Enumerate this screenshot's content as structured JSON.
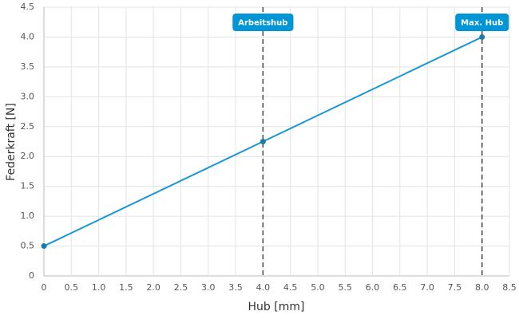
{
  "chart_data": {
    "type": "line",
    "xlabel": "Hub [mm]",
    "ylabel": "Federkraft [N]",
    "x": [
      0,
      4,
      8
    ],
    "values": [
      0.5,
      2.25,
      4.0
    ],
    "color": "#1a96d4",
    "marker_color": "#1a7ba3",
    "xlim": [
      0,
      8.5
    ],
    "xticks": [
      0,
      0.5,
      {
        "value": 1,
        "label": "1.0"
      },
      1.5,
      {
        "value": 2,
        "label": "2.0"
      },
      2.5,
      {
        "value": 3,
        "label": "3.0"
      },
      3.5,
      {
        "value": 4,
        "label": "4.0"
      },
      4.5,
      {
        "value": 5,
        "label": "5.0"
      },
      5.5,
      {
        "value": 6,
        "label": "6.0"
      },
      6.5,
      {
        "value": 7,
        "label": "7.0"
      },
      7.5,
      {
        "value": 8,
        "label": "8.0"
      },
      8.5
    ],
    "ylim": [
      0,
      4.5
    ],
    "yticks": [
      0,
      0.5,
      {
        "value": 1,
        "label": "1.0"
      },
      1.5,
      {
        "value": 2,
        "label": "2.0"
      },
      2.5,
      {
        "value": 3,
        "label": "3.0"
      },
      3.5,
      {
        "value": 4,
        "label": "4.0"
      },
      4.5
    ],
    "grid": true,
    "annotations": [
      {
        "x": 4,
        "label": "Arbeitshub",
        "color": "#0096d6"
      },
      {
        "x": 8,
        "label": "Max. Hub",
        "color": "#0096d6"
      }
    ]
  }
}
